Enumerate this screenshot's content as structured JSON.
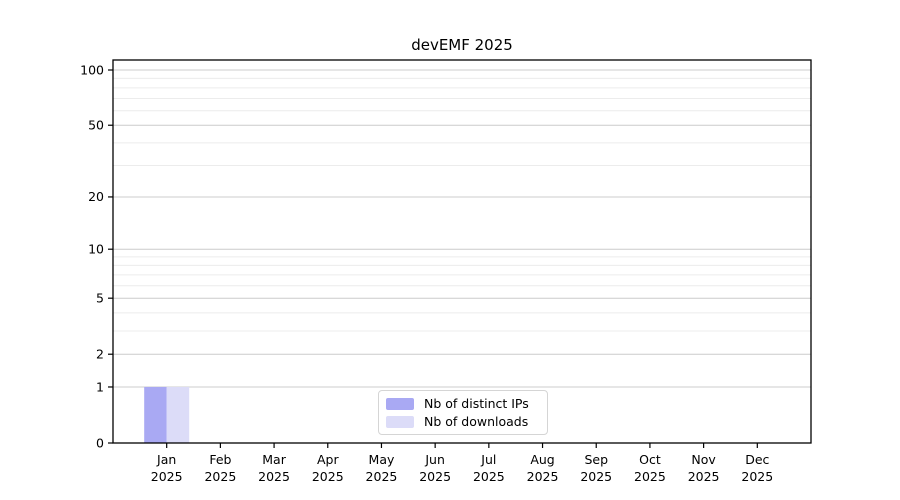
{
  "title": "devEMF 2025",
  "chart_data": {
    "type": "bar",
    "title": "devEMF 2025",
    "categories": [
      "Jan",
      "Feb",
      "Mar",
      "Apr",
      "May",
      "Jun",
      "Jul",
      "Aug",
      "Sep",
      "Oct",
      "Nov",
      "Dec"
    ],
    "year": "2025",
    "series": [
      {
        "name": "Nb of distinct IPs",
        "color": "#a9a9f3",
        "values": [
          1,
          0,
          0,
          0,
          0,
          0,
          0,
          0,
          0,
          0,
          0,
          0
        ]
      },
      {
        "name": "Nb of downloads",
        "color": "#dcdcf8",
        "values": [
          1,
          0,
          0,
          0,
          0,
          0,
          0,
          0,
          0,
          0,
          0,
          0
        ]
      }
    ],
    "xlabel": "",
    "ylabel": "",
    "yscale": "log1p",
    "y_tick_values": [
      0,
      1,
      2,
      5,
      10,
      20,
      50,
      100
    ],
    "y_minor_gridlines": [
      3,
      4,
      6,
      7,
      8,
      9,
      30,
      40,
      60,
      70,
      80,
      90
    ],
    "ylim": [
      0,
      115
    ],
    "grid": "horizontal",
    "legend_position": "bottom-center",
    "colors": {
      "major_grid": "#cccccc",
      "minor_grid": "#ececec",
      "axis": "#000000",
      "background": "#ffffff"
    }
  }
}
